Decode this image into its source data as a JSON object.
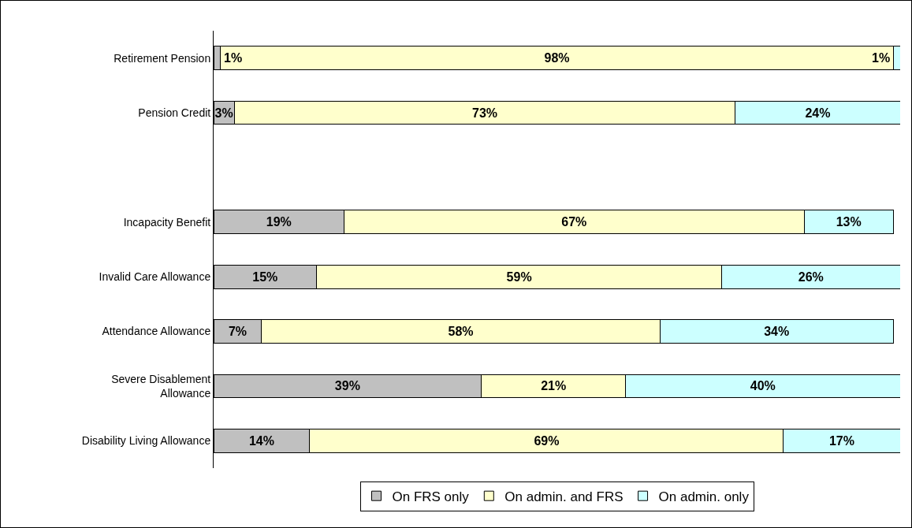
{
  "chart_data": {
    "type": "bar",
    "orientation": "horizontal",
    "stacked": true,
    "categories": [
      "Retirement Pension",
      "Pension Credit",
      null,
      "Incapacity Benefit",
      "Invalid Care Allowance",
      "Attendance Allowance",
      "Severe Disablement Allowance",
      "Disability Living Allowance"
    ],
    "series": [
      {
        "name": "On FRS only",
        "color": "#c0c0c0",
        "values": [
          1,
          3,
          null,
          19,
          15,
          7,
          39,
          14
        ],
        "value_labels": [
          "1%",
          "3%",
          null,
          "19%",
          "15%",
          "7%",
          "39%",
          "14%"
        ]
      },
      {
        "name": "On admin. and FRS",
        "color": "#ffffcc",
        "values": [
          98,
          73,
          null,
          67,
          59,
          58,
          21,
          69
        ],
        "value_labels": [
          "98%",
          "73%",
          null,
          "67%",
          "59%",
          "58%",
          "21%",
          "69%"
        ]
      },
      {
        "name": "On admin. only",
        "color": "#ccffff",
        "values": [
          1,
          24,
          null,
          13,
          26,
          34,
          40,
          17
        ],
        "value_labels": [
          "1%",
          "24%",
          null,
          "13%",
          "26%",
          "34%",
          "40%",
          "17%"
        ]
      }
    ],
    "xlim": [
      0,
      100
    ],
    "tick_labels": "y",
    "grid": false,
    "legend": "bottom"
  }
}
